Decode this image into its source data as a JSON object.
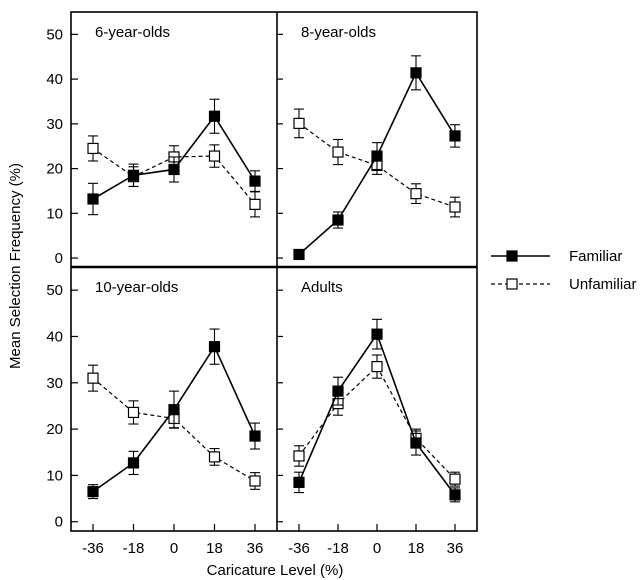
{
  "chart_data": {
    "type": "line",
    "xlabel": "Caricature Level (%)",
    "ylabel": "Mean Selection Frequency (%)",
    "x": [
      -36,
      -18,
      0,
      18,
      36
    ],
    "x_tick_labels": [
      "-36",
      "-18",
      "0",
      "18",
      "36"
    ],
    "y_ticks": [
      0,
      10,
      20,
      30,
      40,
      50
    ],
    "y_tick_labels": [
      "0",
      "10",
      "20",
      "30",
      "40",
      "50"
    ],
    "ylim": [
      -2,
      55
    ],
    "grid": false,
    "legend": {
      "placement": "right",
      "entries": [
        {
          "name": "Familiar",
          "style": "solid",
          "marker": "filled-square"
        },
        {
          "name": "Unfamiliar",
          "style": "dashed",
          "marker": "open-square"
        }
      ]
    },
    "panels": [
      {
        "title": "6-year-olds",
        "series": [
          {
            "name": "Familiar",
            "values": [
              13.2,
              18.5,
              19.8,
              31.7,
              17.2
            ],
            "errors": [
              3.5,
              2.5,
              2.8,
              3.8,
              2.3
            ]
          },
          {
            "name": "Unfamiliar",
            "values": [
              24.5,
              18.2,
              22.6,
              22.8,
              12.0
            ],
            "errors": [
              2.8,
              2.2,
              2.5,
              2.5,
              2.8
            ]
          }
        ]
      },
      {
        "title": "8-year-olds",
        "series": [
          {
            "name": "Familiar",
            "values": [
              0.8,
              8.5,
              22.8,
              41.4,
              27.3
            ],
            "errors": [
              0,
              1.8,
              3.0,
              3.8,
              2.5
            ]
          },
          {
            "name": "Unfamiliar",
            "values": [
              30.1,
              23.7,
              20.7,
              14.4,
              11.4
            ],
            "errors": [
              3.2,
              2.8,
              2.0,
              2.2,
              2.2
            ]
          }
        ]
      },
      {
        "title": "10-year-olds",
        "series": [
          {
            "name": "Familiar",
            "values": [
              6.5,
              12.7,
              24.2,
              37.8,
              18.5
            ],
            "errors": [
              1.5,
              2.5,
              4.0,
              3.8,
              2.8
            ]
          },
          {
            "name": "Unfamiliar",
            "values": [
              31.0,
              23.6,
              22.3,
              14.0,
              8.8
            ],
            "errors": [
              2.8,
              2.5,
              2.0,
              1.8,
              1.8
            ]
          }
        ]
      },
      {
        "title": "Adults",
        "series": [
          {
            "name": "Familiar",
            "values": [
              8.5,
              28.2,
              40.5,
              17.0,
              5.8
            ],
            "errors": [
              2.2,
              3.0,
              3.2,
              2.6,
              1.5
            ]
          },
          {
            "name": "Unfamiliar",
            "values": [
              14.2,
              25.5,
              33.5,
              18.0,
              9.2
            ],
            "errors": [
              2.2,
              2.5,
              2.5,
              2.0,
              1.5
            ]
          }
        ]
      }
    ]
  }
}
